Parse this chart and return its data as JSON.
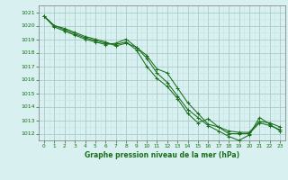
{
  "x": [
    0,
    1,
    2,
    3,
    4,
    5,
    6,
    7,
    8,
    9,
    10,
    11,
    12,
    13,
    14,
    15,
    16,
    17,
    18,
    19,
    20,
    21,
    22,
    23
  ],
  "line1": [
    1020.7,
    1020.0,
    1019.8,
    1019.5,
    1019.2,
    1019.0,
    1018.8,
    1018.5,
    1018.7,
    1018.4,
    1017.8,
    1016.8,
    1016.5,
    1015.4,
    1014.3,
    1013.5,
    1012.7,
    1012.5,
    1012.2,
    1012.1,
    1012.1,
    1012.9,
    1012.8,
    1012.5
  ],
  "line2": [
    1020.7,
    1019.9,
    1019.6,
    1019.3,
    1019.0,
    1018.8,
    1018.6,
    1018.7,
    1019.0,
    1018.4,
    1017.6,
    1016.5,
    1015.8,
    1014.8,
    1013.8,
    1013.2,
    1012.6,
    1012.2,
    1011.8,
    1011.5,
    1011.9,
    1013.2,
    1012.7,
    1012.2
  ],
  "line3": [
    1020.7,
    1020.0,
    1019.7,
    1019.4,
    1019.1,
    1018.9,
    1018.7,
    1018.6,
    1018.8,
    1018.2,
    1017.0,
    1016.1,
    1015.5,
    1014.6,
    1013.5,
    1012.8,
    1013.1,
    1012.5,
    1012.0,
    1012.0,
    1012.0,
    1012.8,
    1012.6,
    1012.3
  ],
  "line_color": "#1a6e1a",
  "bg_color": "#d8f0f0",
  "grid_major_color": "#aacaca",
  "grid_minor_color": "#c4e4e4",
  "xlabel": "Graphe pression niveau de la mer (hPa)",
  "ylim_min": 1011.5,
  "ylim_max": 1021.5,
  "xlim_min": -0.5,
  "xlim_max": 23.5,
  "yticks": [
    1012,
    1013,
    1014,
    1015,
    1016,
    1017,
    1018,
    1019,
    1020,
    1021
  ],
  "xticks": [
    0,
    1,
    2,
    3,
    4,
    5,
    6,
    7,
    8,
    9,
    10,
    11,
    12,
    13,
    14,
    15,
    16,
    17,
    18,
    19,
    20,
    21,
    22,
    23
  ]
}
